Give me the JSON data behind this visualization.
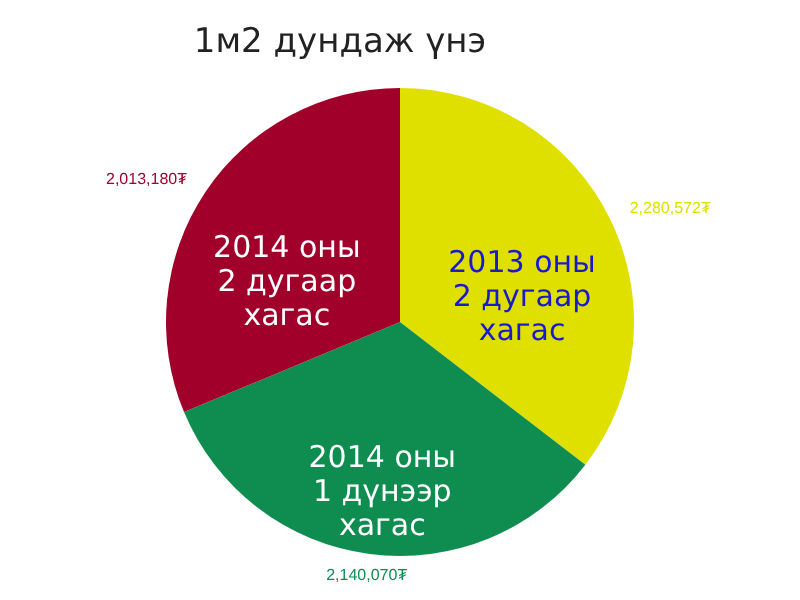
{
  "chart_data": {
    "type": "pie",
    "title": "1м2  дундаж үнэ",
    "categories": [
      "2013 оны\n2 дугаар\nхагас",
      "2014 оны\n1 дүнээр\nхагас",
      "2014 оны\n2 дугаар\nхагас"
    ],
    "values": [
      2280572,
      2140070,
      2013180
    ],
    "colors": [
      "#e0e000",
      "#0f8c50",
      "#a0002a"
    ],
    "value_labels": [
      "2,280,572₮",
      "2,140,070₮",
      "2,013,180₮"
    ]
  }
}
